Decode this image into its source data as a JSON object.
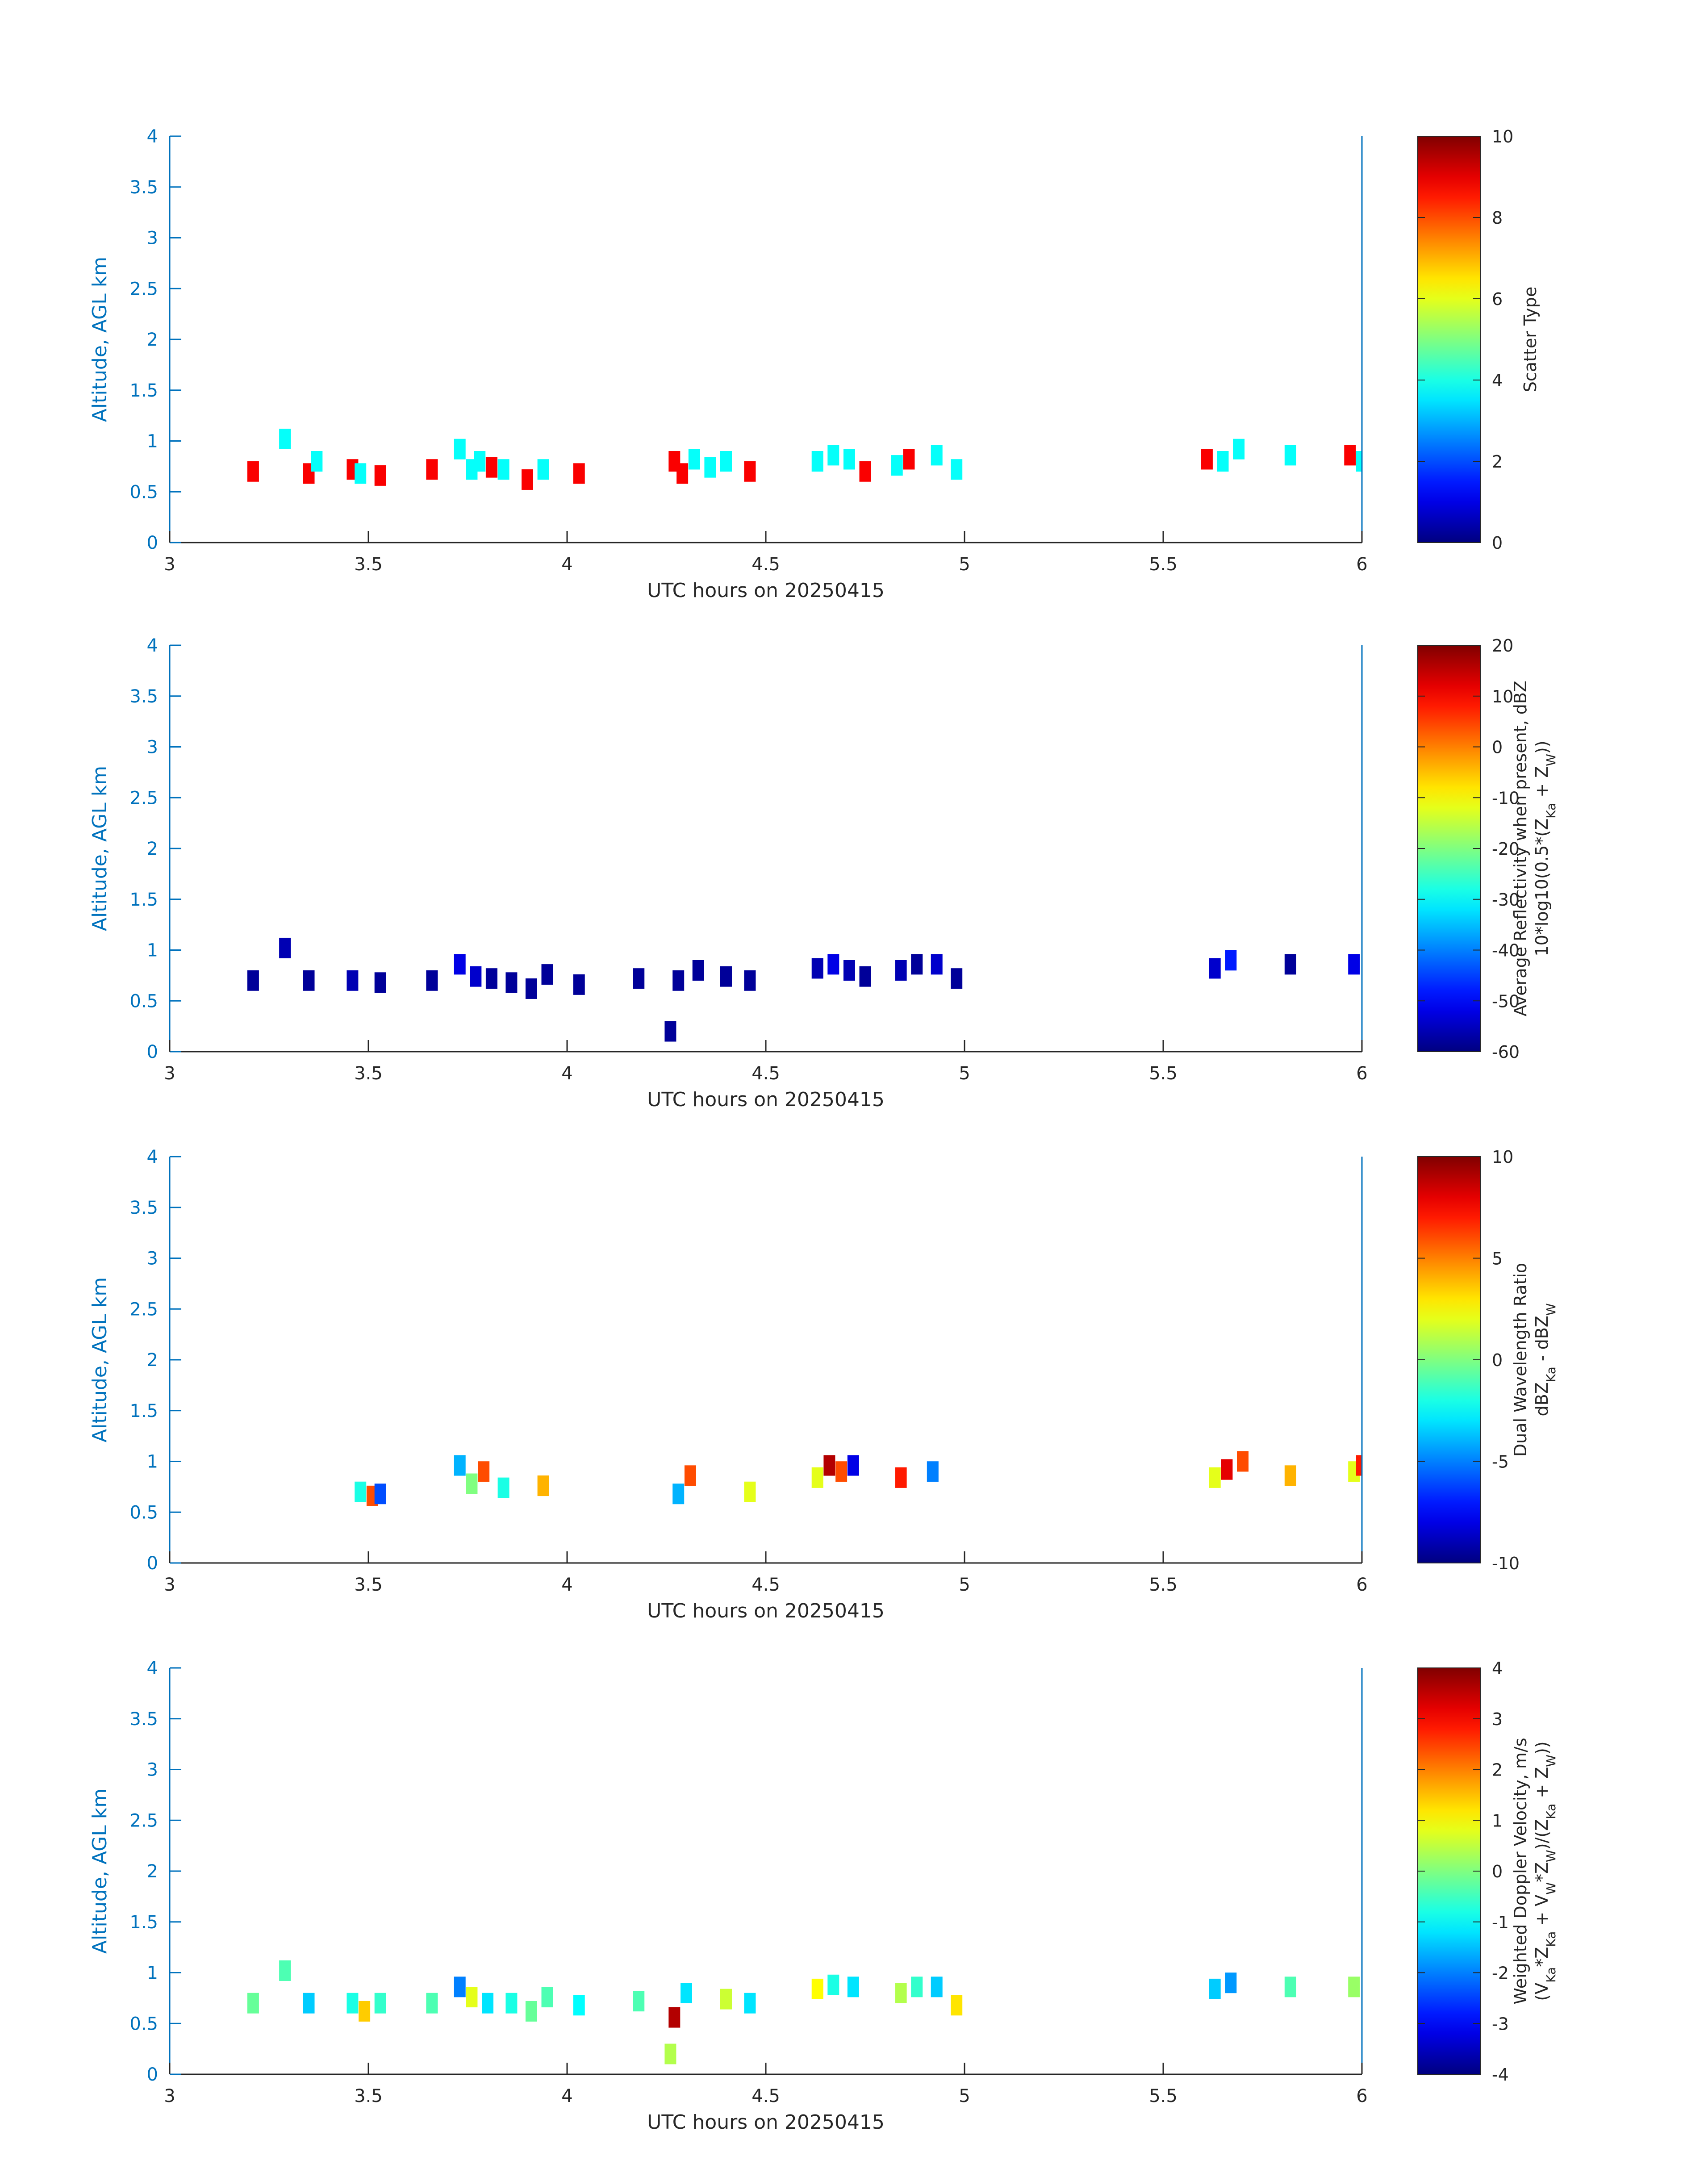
{
  "figure": {
    "xlabel": "UTC hours on 20250415",
    "ylabel": "Altitude, AGL km"
  },
  "chart_data": [
    {
      "type": "heatmap",
      "title": "",
      "xlabel": "UTC hours on 20250415",
      "ylabel": "Altitude, AGL km",
      "xlim": [
        3,
        6
      ],
      "ylim": [
        0,
        4
      ],
      "xticks": [
        "3",
        "3.5",
        "4",
        "4.5",
        "5",
        "5.5",
        "6"
      ],
      "yticks": [
        "0",
        "0.5",
        "1",
        "1.5",
        "2",
        "2.5",
        "3",
        "3.5",
        "4"
      ],
      "grid": false,
      "colorbar": {
        "label": [
          "Scatter Type"
        ],
        "range": [
          0,
          10
        ],
        "ticks": [
          "0",
          "2",
          "4",
          "6",
          "8",
          "10"
        ]
      },
      "cells": [
        [
          3.21,
          0.7,
          8.8
        ],
        [
          3.29,
          1.02,
          3.8
        ],
        [
          3.35,
          0.68,
          8.8
        ],
        [
          3.37,
          0.8,
          3.8
        ],
        [
          3.46,
          0.72,
          8.8
        ],
        [
          3.48,
          0.68,
          3.8
        ],
        [
          3.53,
          0.66,
          8.8
        ],
        [
          3.66,
          0.72,
          8.8
        ],
        [
          3.73,
          0.92,
          3.8
        ],
        [
          3.76,
          0.72,
          3.8
        ],
        [
          3.78,
          0.8,
          3.8
        ],
        [
          3.81,
          0.74,
          8.8
        ],
        [
          3.84,
          0.72,
          3.8
        ],
        [
          3.9,
          0.62,
          8.8
        ],
        [
          3.94,
          0.72,
          3.8
        ],
        [
          4.03,
          0.68,
          8.8
        ],
        [
          4.27,
          0.8,
          8.8
        ],
        [
          4.29,
          0.68,
          8.8
        ],
        [
          4.32,
          0.82,
          3.8
        ],
        [
          4.36,
          0.74,
          3.8
        ],
        [
          4.4,
          0.8,
          3.8
        ],
        [
          4.46,
          0.7,
          8.8
        ],
        [
          4.63,
          0.8,
          3.8
        ],
        [
          4.67,
          0.86,
          3.8
        ],
        [
          4.71,
          0.82,
          3.8
        ],
        [
          4.75,
          0.7,
          8.8
        ],
        [
          4.83,
          0.76,
          3.8
        ],
        [
          4.86,
          0.82,
          8.8
        ],
        [
          4.93,
          0.86,
          3.8
        ],
        [
          4.98,
          0.72,
          3.8
        ],
        [
          5.61,
          0.82,
          8.8
        ],
        [
          5.65,
          0.8,
          3.8
        ],
        [
          5.69,
          0.92,
          3.8
        ],
        [
          5.82,
          0.86,
          3.8
        ],
        [
          5.97,
          0.86,
          8.8
        ],
        [
          6.0,
          0.8,
          3.8
        ]
      ]
    },
    {
      "type": "heatmap",
      "title": "",
      "xlabel": "UTC hours on 20250415",
      "ylabel": "Altitude, AGL km",
      "xlim": [
        3,
        6
      ],
      "ylim": [
        0,
        4
      ],
      "xticks": [
        "3",
        "3.5",
        "4",
        "4.5",
        "5",
        "5.5",
        "6"
      ],
      "yticks": [
        "0",
        "0.5",
        "1",
        "1.5",
        "2",
        "2.5",
        "3",
        "3.5",
        "4"
      ],
      "grid": false,
      "colorbar": {
        "label": [
          "Average Reflectivity when present, dBZ",
          "10*log10(0.5*(Z",
          "Ka",
          " + Z",
          "W",
          "))"
        ],
        "range": [
          -60,
          20
        ],
        "ticks": [
          "-60",
          "-50",
          "-40",
          "-30",
          "-20",
          "-10",
          "0",
          "10",
          "20"
        ]
      },
      "cells": [
        [
          3.21,
          0.7,
          -58
        ],
        [
          3.29,
          1.02,
          -56
        ],
        [
          3.35,
          0.7,
          -58
        ],
        [
          3.46,
          0.7,
          -56
        ],
        [
          3.53,
          0.68,
          -58
        ],
        [
          3.66,
          0.7,
          -58
        ],
        [
          3.73,
          0.86,
          -52
        ],
        [
          3.77,
          0.74,
          -54
        ],
        [
          3.81,
          0.72,
          -58
        ],
        [
          3.86,
          0.68,
          -58
        ],
        [
          3.91,
          0.62,
          -58
        ],
        [
          3.95,
          0.76,
          -58
        ],
        [
          4.03,
          0.66,
          -58
        ],
        [
          4.18,
          0.72,
          -58
        ],
        [
          4.26,
          0.2,
          -58
        ],
        [
          4.28,
          0.7,
          -58
        ],
        [
          4.33,
          0.8,
          -58
        ],
        [
          4.4,
          0.74,
          -58
        ],
        [
          4.46,
          0.7,
          -58
        ],
        [
          4.63,
          0.82,
          -56
        ],
        [
          4.67,
          0.86,
          -52
        ],
        [
          4.71,
          0.8,
          -56
        ],
        [
          4.75,
          0.74,
          -58
        ],
        [
          4.84,
          0.8,
          -56
        ],
        [
          4.88,
          0.86,
          -58
        ],
        [
          4.93,
          0.86,
          -54
        ],
        [
          4.98,
          0.72,
          -58
        ],
        [
          5.63,
          0.82,
          -54
        ],
        [
          5.67,
          0.9,
          -48
        ],
        [
          5.82,
          0.86,
          -58
        ],
        [
          5.98,
          0.86,
          -52
        ]
      ]
    },
    {
      "type": "heatmap",
      "title": "",
      "xlabel": "UTC hours on 20250415",
      "ylabel": "Altitude, AGL km",
      "xlim": [
        3,
        6
      ],
      "ylim": [
        0,
        4
      ],
      "xticks": [
        "3",
        "3.5",
        "4",
        "4.5",
        "5",
        "5.5",
        "6"
      ],
      "yticks": [
        "0",
        "0.5",
        "1",
        "1.5",
        "2",
        "2.5",
        "3",
        "3.5",
        "4"
      ],
      "grid": false,
      "colorbar": {
        "label": [
          "Dual Wavelength Ratio",
          "dBZ",
          "Ka",
          " - dBZ",
          "W"
        ],
        "range": [
          -10,
          10
        ],
        "ticks": [
          "-10",
          "-5",
          "0",
          "5",
          "10"
        ]
      },
      "cells": [
        [
          3.48,
          0.7,
          -2
        ],
        [
          3.51,
          0.66,
          6
        ],
        [
          3.53,
          0.68,
          -6
        ],
        [
          3.73,
          0.96,
          -4
        ],
        [
          3.76,
          0.78,
          0
        ],
        [
          3.79,
          0.9,
          6
        ],
        [
          3.84,
          0.74,
          -2
        ],
        [
          3.94,
          0.76,
          4
        ],
        [
          4.28,
          0.68,
          -4
        ],
        [
          4.31,
          0.86,
          6
        ],
        [
          4.46,
          0.7,
          2
        ],
        [
          4.63,
          0.84,
          2
        ],
        [
          4.66,
          0.96,
          9
        ],
        [
          4.69,
          0.9,
          6
        ],
        [
          4.72,
          0.96,
          -8
        ],
        [
          4.84,
          0.84,
          7
        ],
        [
          4.92,
          0.9,
          -5
        ],
        [
          5.63,
          0.84,
          2
        ],
        [
          5.66,
          0.92,
          8
        ],
        [
          5.7,
          1.0,
          6
        ],
        [
          5.82,
          0.86,
          4
        ],
        [
          5.98,
          0.9,
          2
        ],
        [
          6.0,
          0.96,
          7
        ]
      ]
    },
    {
      "type": "heatmap",
      "title": "",
      "xlabel": "UTC hours on 20250415",
      "ylabel": "Altitude, AGL km",
      "xlim": [
        3,
        6
      ],
      "ylim": [
        0,
        4
      ],
      "xticks": [
        "3",
        "3.5",
        "4",
        "4.5",
        "5",
        "5.5",
        "6"
      ],
      "yticks": [
        "0",
        "0.5",
        "1",
        "1.5",
        "2",
        "2.5",
        "3",
        "3.5",
        "4"
      ],
      "grid": false,
      "colorbar": {
        "label": [
          "Weighted Doppler Velocity, m/s",
          "(V",
          "Ka",
          "*Z",
          "Ka",
          " + V",
          "W",
          "*Z",
          "W",
          ")/(Z",
          "Ka",
          " + Z",
          "W",
          "))"
        ],
        "range": [
          -4,
          4
        ],
        "ticks": [
          "-4",
          "-3",
          "-2",
          "-1",
          "0",
          "1",
          "2",
          "3",
          "4"
        ]
      },
      "cells": [
        [
          3.21,
          0.7,
          -0.2
        ],
        [
          3.29,
          1.02,
          -0.4
        ],
        [
          3.35,
          0.7,
          -1.4
        ],
        [
          3.46,
          0.7,
          -0.8
        ],
        [
          3.49,
          0.62,
          1.4
        ],
        [
          3.53,
          0.7,
          -0.6
        ],
        [
          3.66,
          0.7,
          -0.4
        ],
        [
          3.73,
          0.86,
          -2.0
        ],
        [
          3.76,
          0.76,
          0.8
        ],
        [
          3.8,
          0.7,
          -1.2
        ],
        [
          3.86,
          0.7,
          -0.8
        ],
        [
          3.91,
          0.62,
          -0.2
        ],
        [
          3.95,
          0.76,
          -0.4
        ],
        [
          4.03,
          0.68,
          -1.0
        ],
        [
          4.18,
          0.72,
          -0.4
        ],
        [
          4.26,
          0.2,
          0.4
        ],
        [
          4.27,
          0.56,
          3.6
        ],
        [
          4.3,
          0.8,
          -1.2
        ],
        [
          4.4,
          0.74,
          0.6
        ],
        [
          4.46,
          0.7,
          -1.2
        ],
        [
          4.63,
          0.84,
          1.0
        ],
        [
          4.67,
          0.88,
          -0.8
        ],
        [
          4.72,
          0.86,
          -1.2
        ],
        [
          4.84,
          0.8,
          0.4
        ],
        [
          4.88,
          0.86,
          -0.6
        ],
        [
          4.93,
          0.86,
          -1.4
        ],
        [
          4.98,
          0.68,
          1.2
        ],
        [
          5.63,
          0.84,
          -1.4
        ],
        [
          5.67,
          0.9,
          -1.8
        ],
        [
          5.82,
          0.86,
          -0.4
        ],
        [
          5.98,
          0.86,
          0.2
        ]
      ]
    }
  ]
}
